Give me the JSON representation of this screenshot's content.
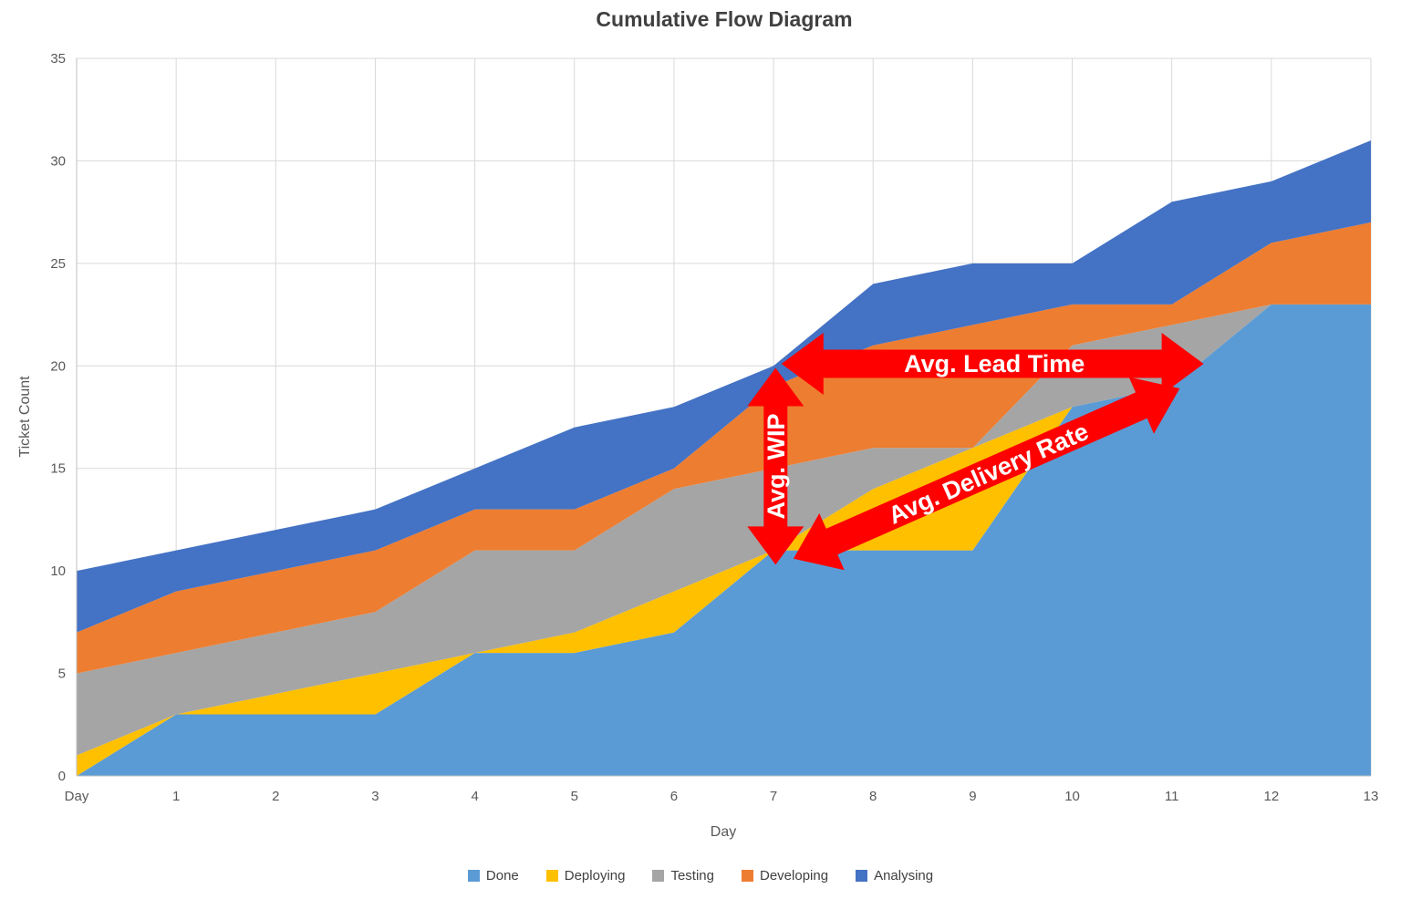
{
  "title": "Cumulative Flow Diagram",
  "y_axis": {
    "title": "Ticket Count",
    "ticks": [
      0,
      5,
      10,
      15,
      20,
      25,
      30,
      35
    ],
    "min": 0,
    "max": 35
  },
  "x_axis": {
    "title": "Day",
    "tick_labels": [
      "Day",
      "1",
      "2",
      "3",
      "4",
      "5",
      "6",
      "7",
      "8",
      "9",
      "10",
      "11",
      "12",
      "13"
    ]
  },
  "legend": [
    {
      "label": "Done",
      "color": "#5B9BD5"
    },
    {
      "label": "Deploying",
      "color": "#FFC000"
    },
    {
      "label": "Testing",
      "color": "#A5A5A5"
    },
    {
      "label": "Developing",
      "color": "#ED7D31"
    },
    {
      "label": "Analysing",
      "color": "#4472C4"
    }
  ],
  "chart_data": {
    "type": "area",
    "stacked": true,
    "title": "Cumulative Flow Diagram",
    "xlabel": "Day",
    "ylabel": "Ticket Count",
    "ylim": [
      0,
      35
    ],
    "grid": true,
    "legend_position": "bottom",
    "x": [
      0,
      1,
      2,
      3,
      4,
      5,
      6,
      7,
      8,
      9,
      10,
      11,
      12,
      13
    ],
    "x_tick_labels": [
      "Day",
      "1",
      "2",
      "3",
      "4",
      "5",
      "6",
      "7",
      "8",
      "9",
      "10",
      "11",
      "12",
      "13"
    ],
    "series": [
      {
        "name": "Done",
        "color": "#5B9BD5",
        "values": [
          0,
          3,
          3,
          3,
          6,
          6,
          7,
          11,
          11,
          11,
          18,
          19,
          23,
          23
        ]
      },
      {
        "name": "Deploying",
        "color": "#FFC000",
        "values": [
          1,
          0,
          1,
          2,
          0,
          1,
          2,
          0,
          3,
          5,
          0,
          0,
          0,
          0
        ]
      },
      {
        "name": "Testing",
        "color": "#A5A5A5",
        "values": [
          4,
          3,
          3,
          3,
          5,
          4,
          5,
          4,
          2,
          0,
          3,
          3,
          0,
          0
        ]
      },
      {
        "name": "Developing",
        "color": "#ED7D31",
        "values": [
          2,
          3,
          3,
          3,
          2,
          2,
          1,
          4,
          5,
          6,
          2,
          1,
          3,
          4
        ]
      },
      {
        "name": "Analysing",
        "color": "#4472C4",
        "values": [
          3,
          2,
          2,
          2,
          2,
          4,
          3,
          1,
          3,
          3,
          2,
          5,
          3,
          4
        ]
      }
    ],
    "cumulative_totals": [
      10,
      11,
      12,
      13,
      15,
      17,
      18,
      20,
      24,
      25,
      25,
      28,
      29,
      31
    ],
    "annotation_color": "#FF0000",
    "annotations": [
      {
        "id": "avg-wip",
        "label": "Avg. WIP",
        "type": "vertical-double-arrow",
        "day": 7.02,
        "value_from": 19.9,
        "value_to": 10.3
      },
      {
        "id": "avg-lead-time",
        "label": "Avg. Lead Time",
        "type": "horizontal-double-arrow",
        "value": 20.1,
        "day_from": 7.08,
        "day_to": 11.32
      },
      {
        "id": "avg-delivery-rate",
        "label": "Avg. Delivery Rate",
        "type": "diagonal-double-arrow",
        "day_from": 7.2,
        "value_from": 10.6,
        "day_to": 11.08,
        "value_to": 18.9
      }
    ]
  }
}
